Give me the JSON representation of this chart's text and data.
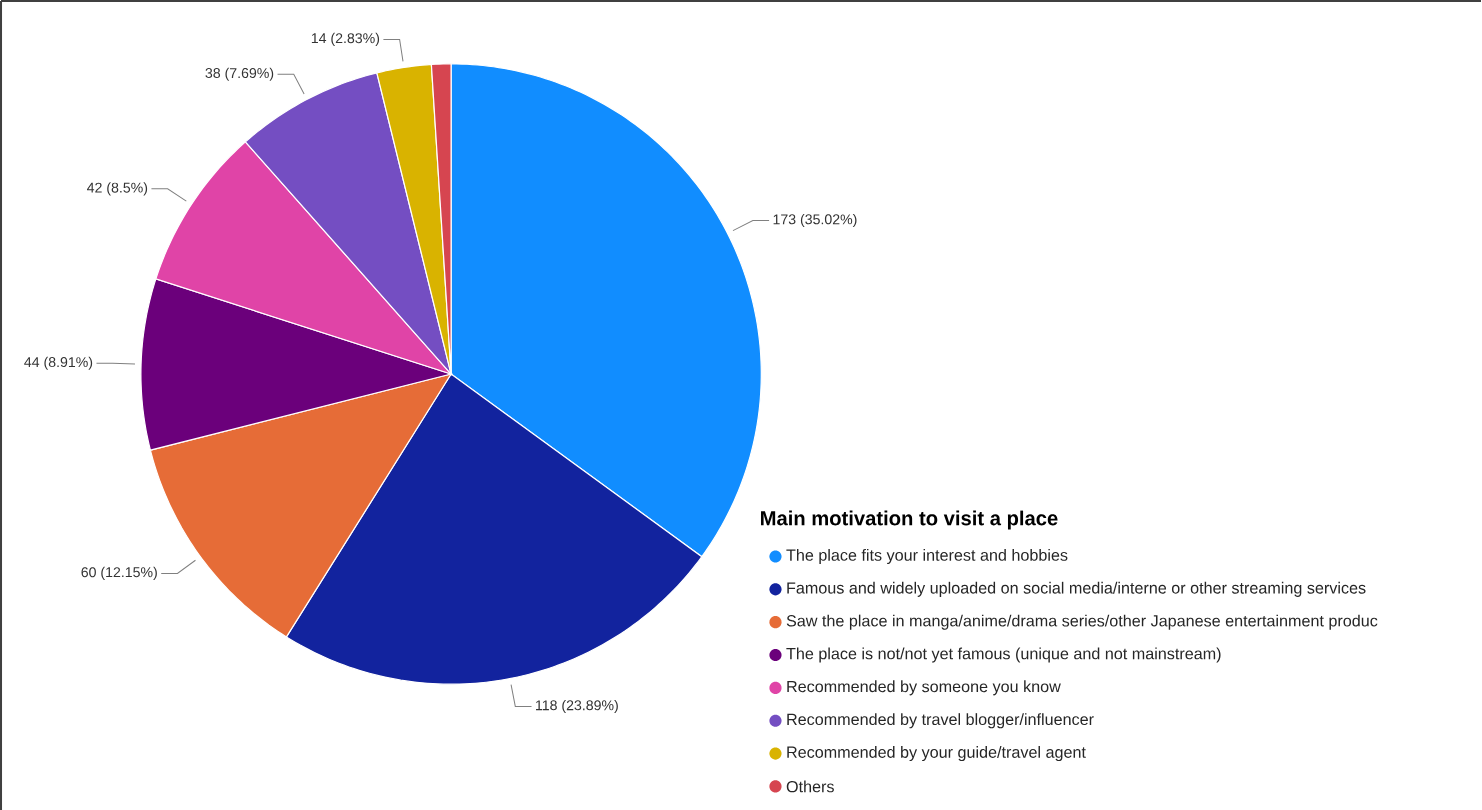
{
  "chart_data": {
    "type": "pie",
    "legend_title": "Main motivation to visit a place",
    "categories": [
      "The place fits your interest and hobbies",
      "Famous and widely uploaded on social media/interne or other streaming services",
      "Saw the place in manga/anime/drama series/other Japanese entertainment produc",
      "The place is not/not yet famous (unique and not mainstream)",
      "Recommended by someone you know",
      "Recommended by travel blogger/influencer",
      "Recommended by your guide/travel agent",
      "Others"
    ],
    "values": [
      173,
      118,
      60,
      44,
      42,
      38,
      14,
      5
    ],
    "value_labels": [
      "173 (35.02%)",
      "118 (23.89%)",
      "60 (12.15%)",
      "44 (8.91%)",
      "42 (8.5%)",
      "38 (7.69%)",
      "14 (2.83%)",
      null
    ],
    "colors": [
      "#118dff",
      "#12239e",
      "#e66c37",
      "#6b007b",
      "#e044a7",
      "#744ec2",
      "#d9b300",
      "#d64550"
    ],
    "legend": "bottom right"
  }
}
